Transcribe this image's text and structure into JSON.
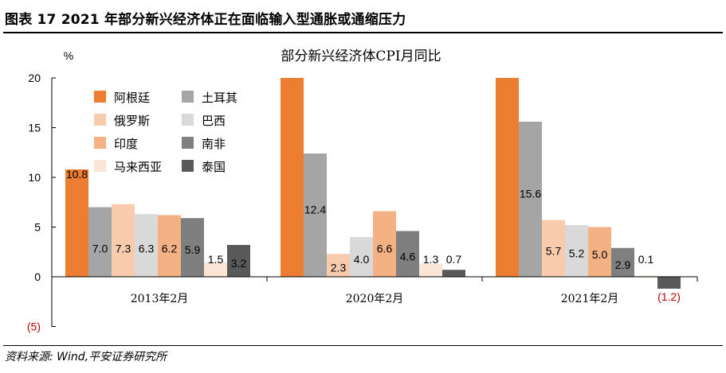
{
  "header": {
    "figure_title": "图表 17    2021 年部分新兴经济体正在面临输入型通胀或通缩压力"
  },
  "footer": {
    "source": "资料来源: Wind,平安证券研究所"
  },
  "chart_data": {
    "type": "bar",
    "title": "部分新兴经济体CPI月同比",
    "ylabel": "%",
    "ylim": [
      -5,
      20
    ],
    "yticks": [
      -5,
      0,
      5,
      10,
      15,
      20
    ],
    "ytick_labels": [
      "(5)",
      "0",
      "5",
      "10",
      "15",
      "20"
    ],
    "categories": [
      "2013年2月",
      "2020年2月",
      "2021年2月"
    ],
    "legend_position": "top-left",
    "series": [
      {
        "name": "阿根廷",
        "color": "#ED7D31",
        "values": [
          10.8,
          20,
          20
        ],
        "labels": [
          "10.8",
          "",
          ""
        ]
      },
      {
        "name": "土耳其",
        "color": "#A5A5A5",
        "values": [
          7.0,
          12.4,
          15.6
        ],
        "labels": [
          "7.0",
          "12.4",
          "15.6"
        ]
      },
      {
        "name": "俄罗斯",
        "color": "#F8CBAD",
        "values": [
          7.3,
          2.3,
          5.7
        ],
        "labels": [
          "7.3",
          "2.3",
          "5.7"
        ]
      },
      {
        "name": "巴西",
        "color": "#D9D9D9",
        "values": [
          6.3,
          4.0,
          5.2
        ],
        "labels": [
          "6.3",
          "4.0",
          "5.2"
        ]
      },
      {
        "name": "印度",
        "color": "#F4B183",
        "values": [
          6.2,
          6.6,
          5.0
        ],
        "labels": [
          "6.2",
          "6.6",
          "5.0"
        ]
      },
      {
        "name": "南非",
        "color": "#7F7F7F",
        "values": [
          5.9,
          4.6,
          2.9
        ],
        "labels": [
          "5.9",
          "4.6",
          "2.9"
        ]
      },
      {
        "name": "马来西亚",
        "color": "#FBE5D6",
        "values": [
          1.5,
          1.3,
          0.1
        ],
        "labels": [
          "1.5",
          "1.3",
          "0.1"
        ]
      },
      {
        "name": "泰国",
        "color": "#595959",
        "values": [
          3.2,
          0.7,
          -1.2
        ],
        "labels": [
          "3.2",
          "0.7",
          "(1.2)"
        ]
      }
    ],
    "negative_label_color": "#C00000"
  }
}
